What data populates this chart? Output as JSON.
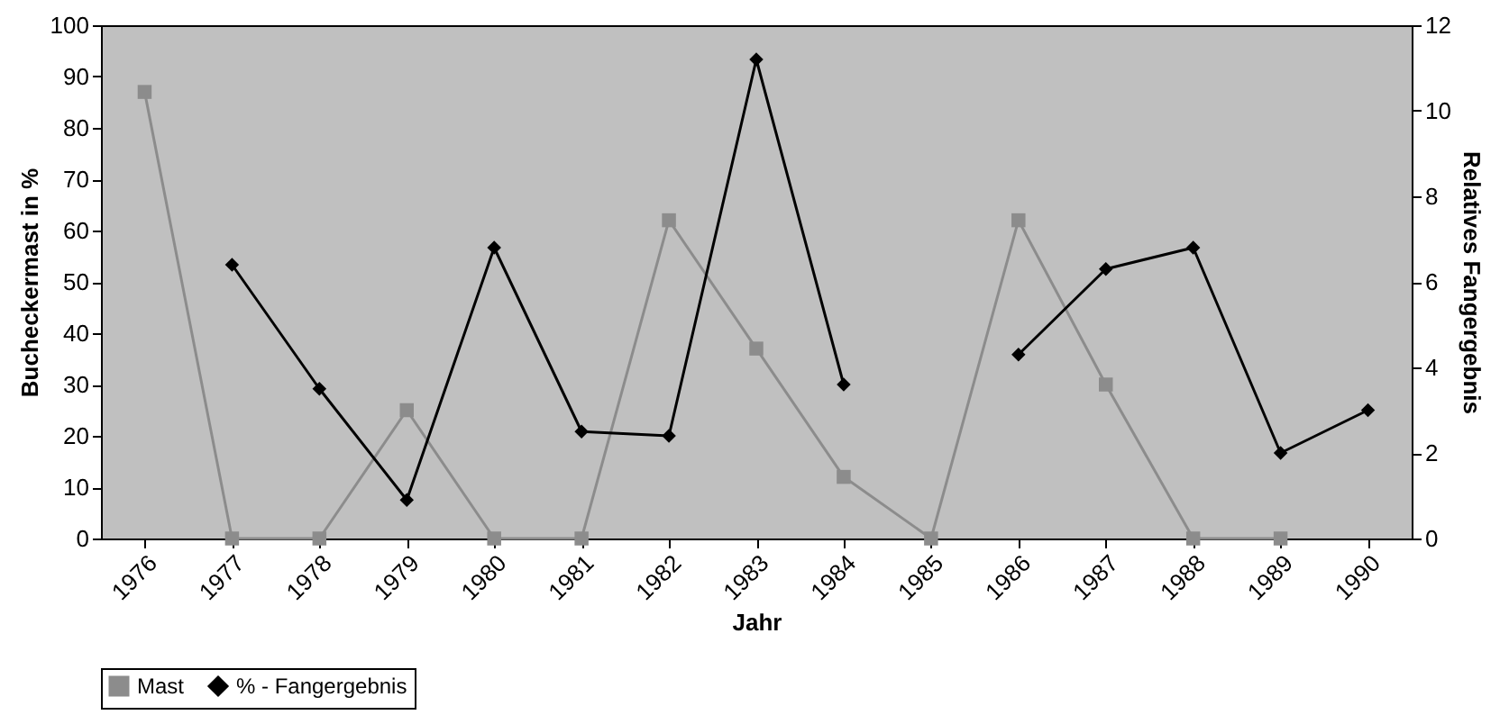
{
  "chart_data": {
    "type": "line",
    "xlabel": "Jahr",
    "ylabel": "Bucheckermast in %",
    "y2label": "Relatives Fangergebnis",
    "categories": [
      "1976",
      "1977",
      "1978",
      "1979",
      "1980",
      "1981",
      "1982",
      "1983",
      "1984",
      "1985",
      "1986",
      "1987",
      "1988",
      "1989",
      "1990"
    ],
    "series": [
      {
        "name": "Mast",
        "color": "#8c8c8c",
        "marker": "square",
        "values": [
          87,
          0,
          0,
          25,
          0,
          0,
          62,
          37,
          12,
          0,
          62,
          30,
          0,
          0,
          null
        ]
      },
      {
        "name": "% - Fangergebnis",
        "color": "#000000",
        "marker": "diamond",
        "axis": "y2",
        "values": [
          null,
          6.4,
          3.5,
          0.9,
          6.8,
          2.5,
          2.4,
          11.2,
          3.6,
          null,
          4.3,
          6.3,
          6.8,
          2.0,
          3.0
        ]
      }
    ],
    "ylim": [
      0,
      100
    ],
    "yticks": [
      0,
      10,
      20,
      30,
      40,
      50,
      60,
      70,
      80,
      90,
      100
    ],
    "y2lim": [
      0,
      12
    ],
    "y2ticks": [
      0,
      2,
      4,
      6,
      8,
      10,
      12
    ],
    "grid": false,
    "legend": "bottom"
  }
}
